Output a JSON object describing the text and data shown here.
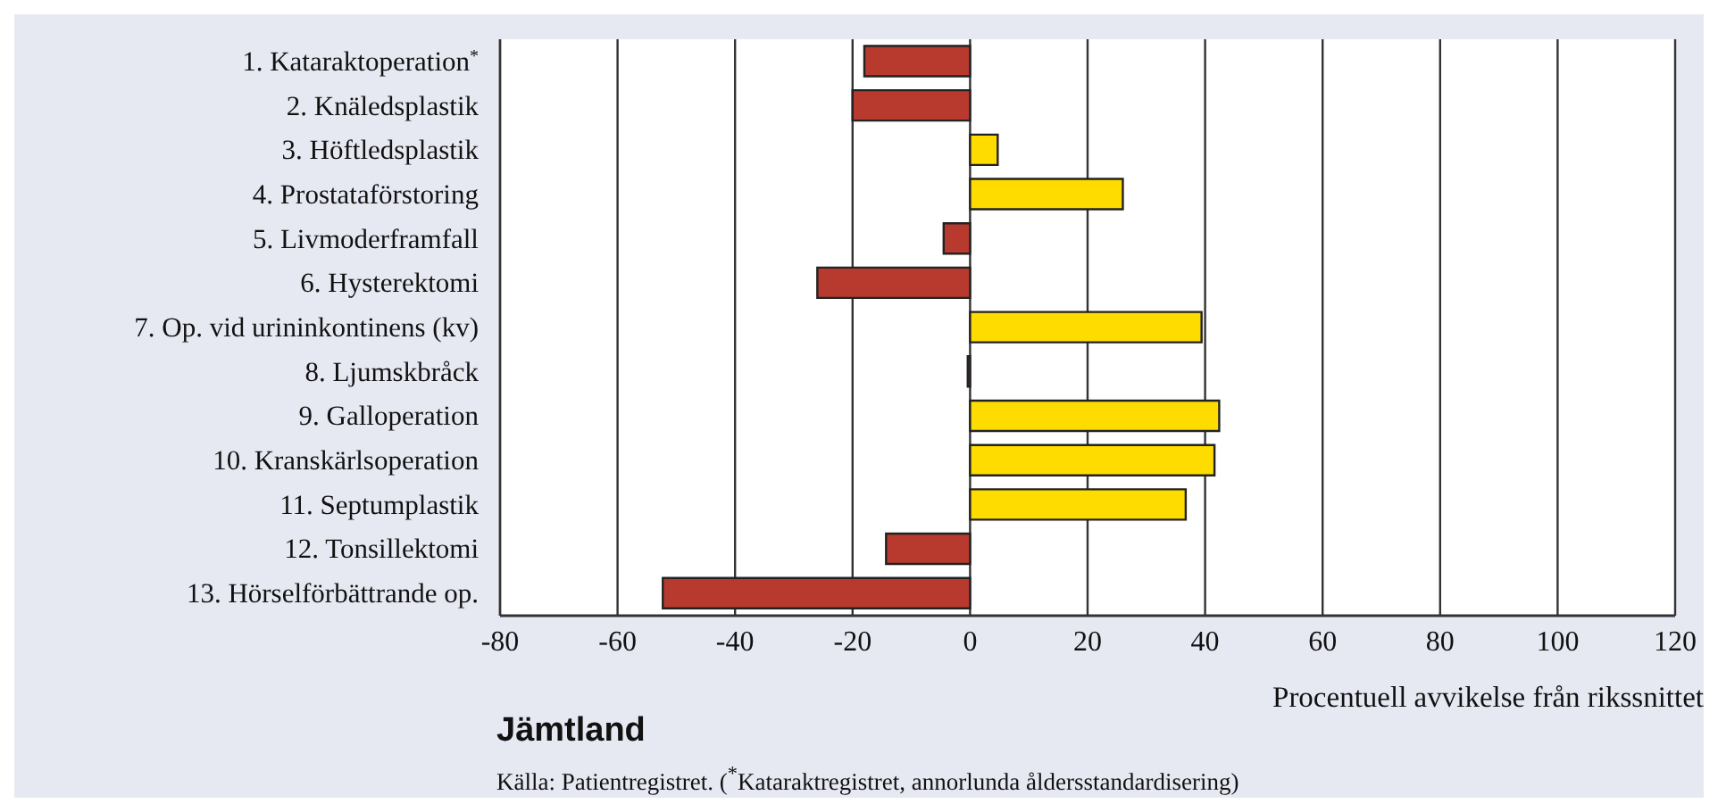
{
  "chart_data": {
    "type": "bar",
    "orientation": "horizontal",
    "title": "Jämtland",
    "xlabel": "Procentuell avvikelse från rikssnittet",
    "categories": [
      "1. Kataraktoperation$^{*}$",
      "2. Knäledsplastik",
      "3. Höftledsplastik",
      "4. Prostataförstoring",
      "5. Livmoderframfall",
      "6. Hysterektomi",
      "7. Op. vid urininkontinens (kv)",
      "8. Ljumskbråck",
      "9. Galloperation",
      "10. Kranskärlsoperation",
      "11. Septumplastik",
      "12. Tonsillektomi",
      "13. Hörselförbättrande op."
    ],
    "values": [
      -18,
      -20,
      4.7,
      26,
      -4.5,
      -26,
      39.4,
      -0.4,
      42.4,
      41.6,
      36.7,
      -14.3,
      -52.3
    ],
    "colors": [
      "#b83a2e",
      "#b83a2e",
      "#ffdc00",
      "#ffdc00",
      "#b83a2e",
      "#b83a2e",
      "#ffdc00",
      "#b83a2e",
      "#ffdc00",
      "#ffdc00",
      "#ffdc00",
      "#b83a2e",
      "#b83a2e"
    ],
    "xlim": [
      -80,
      120
    ],
    "xticks": [
      -80,
      -60,
      -40,
      -20,
      0,
      20,
      40,
      60,
      80,
      100,
      120
    ],
    "grid": "x",
    "annotations": [
      "Källa: Patientregistret. ($^{*}$Kataraktregistret, annorlunda åldersstandardisering)"
    ]
  }
}
